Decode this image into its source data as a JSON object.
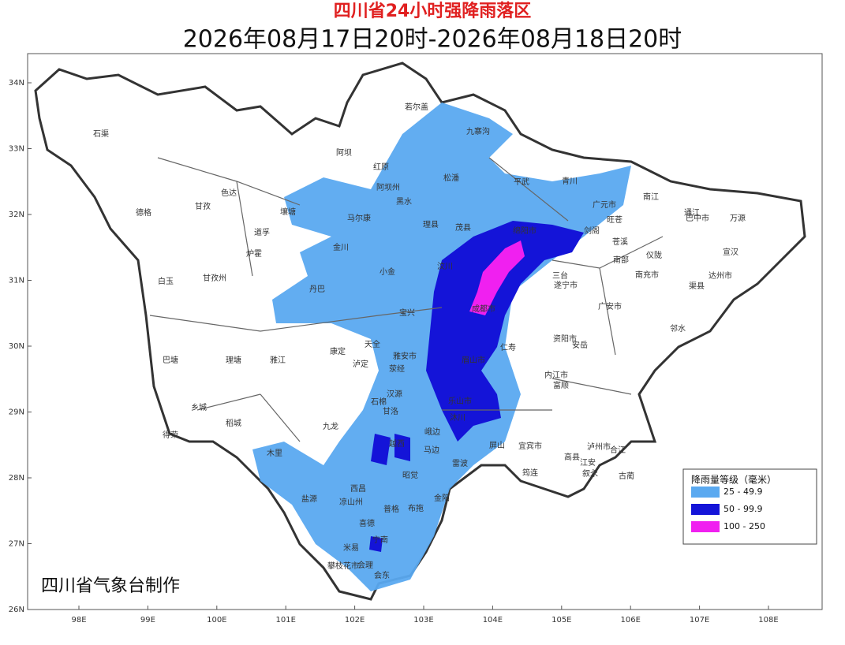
{
  "header": {
    "title": "四川省24小时强降雨落区",
    "subtitle": "2026年08月17日20时-2026年08月18日20时"
  },
  "axes": {
    "lat": [
      {
        "value": 34,
        "label": "34N"
      },
      {
        "value": 33,
        "label": "33N"
      },
      {
        "value": 32,
        "label": "32N"
      },
      {
        "value": 31,
        "label": "31N"
      },
      {
        "value": 30,
        "label": "30N"
      },
      {
        "value": 29,
        "label": "29N"
      },
      {
        "value": 28,
        "label": "28N"
      },
      {
        "value": 27,
        "label": "27N"
      },
      {
        "value": 26,
        "label": "26N"
      }
    ],
    "lon": [
      {
        "value": 98,
        "label": "98E"
      },
      {
        "value": 99,
        "label": "99E"
      },
      {
        "value": 100,
        "label": "100E"
      },
      {
        "value": 101,
        "label": "101E"
      },
      {
        "value": 102,
        "label": "102E"
      },
      {
        "value": 103,
        "label": "103E"
      },
      {
        "value": 104,
        "label": "104E"
      },
      {
        "value": 105,
        "label": "105E"
      },
      {
        "value": 106,
        "label": "106E"
      },
      {
        "value": 107,
        "label": "107E"
      },
      {
        "value": 108,
        "label": "108E"
      }
    ]
  },
  "places": [
    "石渠",
    "德格",
    "甘孜",
    "色达",
    "炉霍",
    "白玉",
    "甘孜州",
    "巴塘",
    "理塘",
    "乡城",
    "稻城",
    "得荣",
    "雅江",
    "道孚",
    "丹巴",
    "康定",
    "九龙",
    "木里",
    "盐源",
    "凉山州",
    "西昌",
    "米易",
    "攀枝花市",
    "会东",
    "宁南",
    "布拖",
    "昭觉",
    "雷波",
    "马边",
    "乐山市",
    "眉山市",
    "雅安市",
    "汉源",
    "石棉",
    "泸定",
    "天全",
    "荥经",
    "宝兴",
    "小金",
    "金川",
    "马尔康",
    "阿坝州",
    "壤塘",
    "阿坝",
    "红原",
    "若尔盖",
    "九寨沟",
    "松潘",
    "黑水",
    "理县",
    "茂县",
    "汶川",
    "平武",
    "青川",
    "广元市",
    "旺苍",
    "南江",
    "通江",
    "巴中市",
    "万源",
    "宣汉",
    "达州市",
    "渠县",
    "南充市",
    "广安市",
    "邻水",
    "遂宁市",
    "资阳市",
    "内江市",
    "宜宾市",
    "泸州市",
    "古蔺",
    "叙永",
    "筠连",
    "绵阳市",
    "成都市",
    "仁寿",
    "安岳",
    "剑阁",
    "苍溪",
    "仪陇",
    "南部",
    "三台",
    "沐川",
    "屏山",
    "高县",
    "江安",
    "合江",
    "富顺",
    "会理",
    "金阳",
    "喜德",
    "甘洛",
    "越西",
    "普格",
    "峨边"
  ],
  "legend": {
    "title": "降雨量等级（毫米）",
    "items": [
      {
        "label": "25 - 49.9",
        "color": "#5aa9f0"
      },
      {
        "label": "50 - 99.9",
        "color": "#1414d8"
      },
      {
        "label": "100 - 250",
        "color": "#f020f0"
      }
    ]
  },
  "credit": "四川省气象台制作"
}
